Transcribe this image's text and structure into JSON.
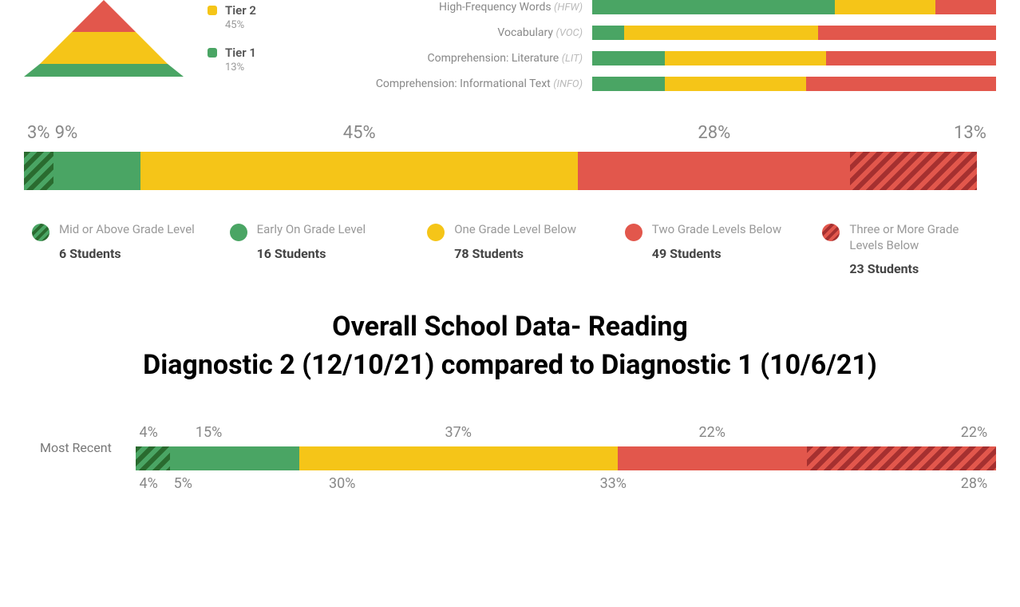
{
  "colors": {
    "green": "#4aa564",
    "green_dark": "#2a6b2f",
    "yellow": "#f5c518",
    "red": "#e2574c",
    "red_dark": "#a53030",
    "text_muted": "#888888",
    "text_light": "#aaaaaa",
    "text_dark": "#444444",
    "background": "#ffffff"
  },
  "tiers": [
    {
      "label": "Tier 2",
      "pct": "45%",
      "color": "#f5c518"
    },
    {
      "label": "Tier 1",
      "pct": "13%",
      "color": "#4aa564"
    }
  ],
  "pyramid": {
    "layers": [
      {
        "color": "#e2574c",
        "top_width": 0,
        "bottom_width": 80,
        "height": 40
      },
      {
        "color": "#f5c518",
        "top_width": 80,
        "bottom_width": 160,
        "height": 40
      },
      {
        "color": "#4aa564",
        "top_width": 160,
        "bottom_width": 200,
        "height": 16
      }
    ]
  },
  "domains": [
    {
      "label": "High-Frequency Words",
      "abbr": "(HFW)",
      "segs": [
        {
          "color": "#4aa564",
          "pct": 60
        },
        {
          "color": "#f5c518",
          "pct": 25
        },
        {
          "color": "#e2574c",
          "pct": 15
        }
      ]
    },
    {
      "label": "Vocabulary",
      "abbr": "(VOC)",
      "segs": [
        {
          "color": "#4aa564",
          "pct": 8
        },
        {
          "color": "#f5c518",
          "pct": 48
        },
        {
          "color": "#e2574c",
          "pct": 44
        }
      ]
    },
    {
      "label": "Comprehension: Literature",
      "abbr": "(LIT)",
      "segs": [
        {
          "color": "#4aa564",
          "pct": 18
        },
        {
          "color": "#f5c518",
          "pct": 40
        },
        {
          "color": "#e2574c",
          "pct": 42
        }
      ]
    },
    {
      "label": "Comprehension: Informational Text",
      "abbr": "(INFO)",
      "segs": [
        {
          "color": "#4aa564",
          "pct": 18
        },
        {
          "color": "#f5c518",
          "pct": 35
        },
        {
          "color": "#e2574c",
          "pct": 47
        }
      ]
    }
  ],
  "main_bar": {
    "segments": [
      {
        "pct": 3,
        "label": "3%",
        "color": "#4aa564",
        "hatch": "green"
      },
      {
        "pct": 9,
        "label": "9%",
        "color": "#4aa564",
        "hatch": null
      },
      {
        "pct": 45,
        "label": "45%",
        "color": "#f5c518",
        "hatch": null
      },
      {
        "pct": 28,
        "label": "28%",
        "color": "#e2574c",
        "hatch": null
      },
      {
        "pct": 13,
        "label": "13%",
        "color": "#e2574c",
        "hatch": "red"
      }
    ]
  },
  "legend": [
    {
      "label": "Mid or Above Grade Level",
      "count": "6 Students",
      "color": "#4aa564",
      "hatch": "green"
    },
    {
      "label": "Early On Grade Level",
      "count": "16 Students",
      "color": "#4aa564",
      "hatch": null
    },
    {
      "label": "One Grade Level Below",
      "count": "78 Students",
      "color": "#f5c518",
      "hatch": null
    },
    {
      "label": "Two Grade Levels Below",
      "count": "49 Students",
      "color": "#e2574c",
      "hatch": null
    },
    {
      "label": "Three or More Grade Levels Below",
      "count": "23 Students",
      "color": "#e2574c",
      "hatch": "red"
    }
  ],
  "heading": {
    "line1": "Overall School Data- Reading",
    "line2": "Diagnostic 2 (12/10/21) compared to Diagnostic 1 (10/6/21)"
  },
  "compare": [
    {
      "label": "Most Recent",
      "segments": [
        {
          "pct": 4,
          "label": "4%",
          "color": "#4aa564",
          "hatch": "green"
        },
        {
          "pct": 15,
          "label": "15%",
          "color": "#4aa564",
          "hatch": null
        },
        {
          "pct": 37,
          "label": "37%",
          "color": "#f5c518",
          "hatch": null
        },
        {
          "pct": 22,
          "label": "22%",
          "color": "#e2574c",
          "hatch": null
        },
        {
          "pct": 22,
          "label": "22%",
          "color": "#e2574c",
          "hatch": "red"
        }
      ]
    },
    {
      "label": "",
      "pct_only": true,
      "segments": [
        {
          "pct": 4,
          "label": "4%",
          "color": "#4aa564",
          "hatch": "green"
        },
        {
          "pct": 5,
          "label": "5%",
          "color": "#4aa564",
          "hatch": null
        },
        {
          "pct": 30,
          "label": "30%",
          "color": "#f5c518",
          "hatch": null
        },
        {
          "pct": 33,
          "label": "33%",
          "color": "#e2574c",
          "hatch": null
        },
        {
          "pct": 28,
          "label": "28%",
          "color": "#e2574c",
          "hatch": "red"
        }
      ]
    }
  ]
}
